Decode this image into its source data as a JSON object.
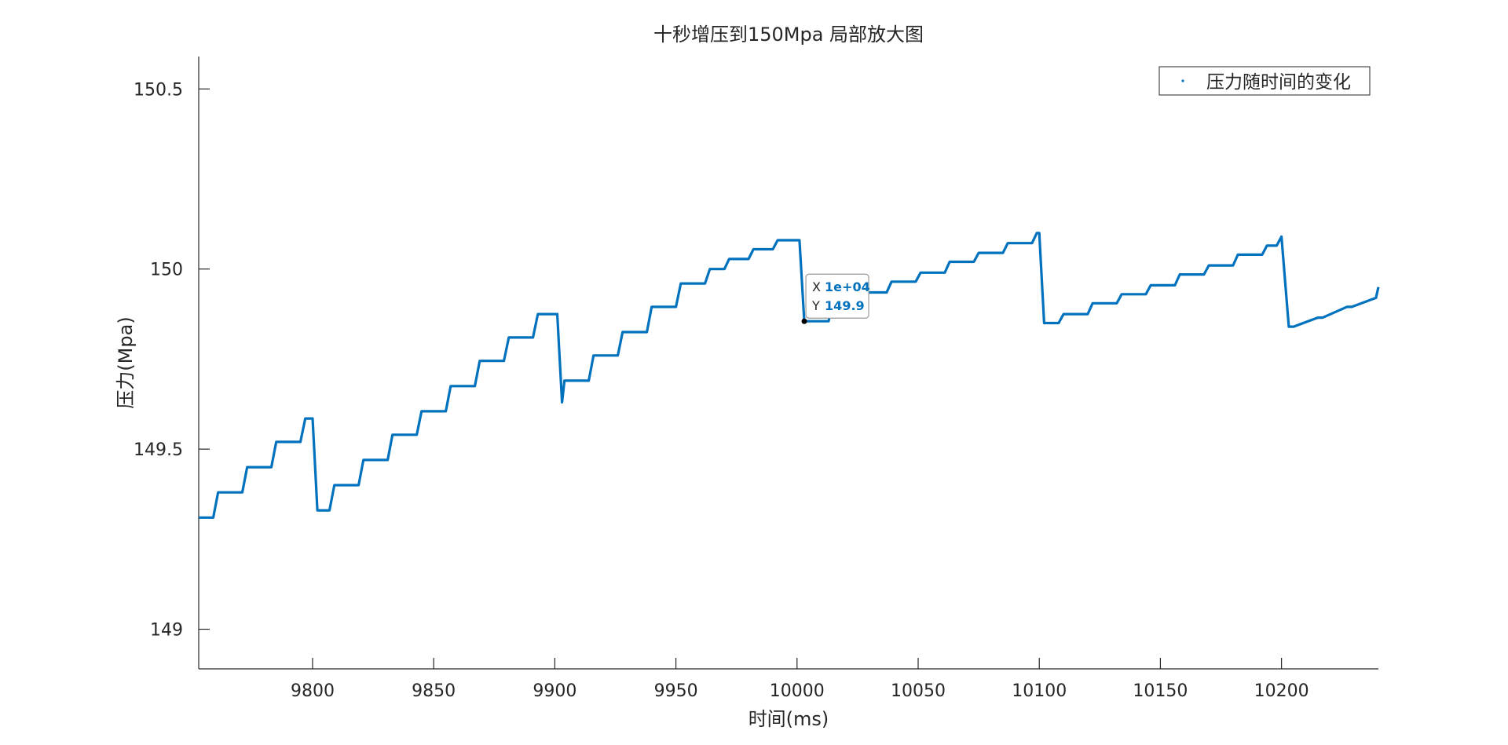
{
  "chart_data": {
    "type": "line",
    "title": "十秒增压到150Mpa 局部放大图",
    "xlabel": "时间(ms)",
    "ylabel": "压力(Mpa)",
    "xlim": [
      9753,
      10240
    ],
    "ylim": [
      148.89,
      150.59
    ],
    "x_ticks": [
      9800,
      9850,
      9900,
      9950,
      10000,
      10050,
      10100,
      10150,
      10200
    ],
    "y_ticks": [
      149,
      149.5,
      150,
      150.5
    ],
    "x_tick_labels": [
      "9800",
      "9850",
      "9900",
      "9950",
      "10000",
      "10050",
      "10100",
      "10150",
      "10200"
    ],
    "y_tick_labels": [
      "149",
      "149.5",
      "150",
      "150.5"
    ],
    "grid": false,
    "legend": {
      "position": "top-right",
      "entries": [
        "压力随时间的变化"
      ]
    },
    "series": [
      {
        "name": "压力随时间的变化",
        "color": "#0072BD",
        "x": [
          9753,
          9759,
          9761,
          9771,
          9773,
          9783,
          9785,
          9795,
          9797,
          9800,
          9802,
          9807,
          9809,
          9819,
          9821,
          9831,
          9833,
          9843,
          9845,
          9855,
          9857,
          9867,
          9869,
          9879,
          9881,
          9891,
          9893,
          9901,
          9903,
          9904,
          9914,
          9916,
          9926,
          9928,
          9938,
          9940,
          9950,
          9952,
          9962,
          9964,
          9970,
          9972,
          9980,
          9982,
          9990,
          9992,
          10001,
          10003,
          10013,
          10015,
          10025,
          10027,
          10037,
          10039,
          10049,
          10051,
          10061,
          10063,
          10073,
          10075,
          10085,
          10087,
          10097,
          10099,
          10100,
          10102,
          10108,
          10110,
          10120,
          10122,
          10132,
          10134,
          10144,
          10146,
          10156,
          10158,
          10168,
          10170,
          10180,
          10182,
          10192,
          10194,
          10198,
          10200,
          10203,
          10205,
          10215,
          10217,
          10227,
          10229,
          10239,
          10240
        ],
        "y": [
          149.31,
          149.31,
          149.38,
          149.38,
          149.45,
          149.45,
          149.52,
          149.52,
          149.585,
          149.585,
          149.33,
          149.33,
          149.4,
          149.4,
          149.47,
          149.47,
          149.54,
          149.54,
          149.605,
          149.605,
          149.675,
          149.675,
          149.745,
          149.745,
          149.81,
          149.81,
          149.875,
          149.875,
          149.63,
          149.69,
          149.69,
          149.76,
          149.76,
          149.825,
          149.825,
          149.895,
          149.895,
          149.96,
          149.96,
          150.0,
          150.0,
          150.028,
          150.028,
          150.055,
          150.055,
          150.08,
          150.08,
          149.855,
          149.855,
          149.91,
          149.91,
          149.935,
          149.935,
          149.965,
          149.965,
          149.99,
          149.99,
          150.02,
          150.02,
          150.045,
          150.045,
          150.072,
          150.072,
          150.1,
          150.1,
          149.85,
          149.85,
          149.875,
          149.875,
          149.905,
          149.905,
          149.93,
          149.93,
          149.955,
          149.955,
          149.985,
          149.985,
          150.01,
          150.01,
          150.04,
          150.04,
          150.065,
          150.065,
          150.09,
          149.84,
          149.84,
          149.865,
          149.865,
          149.895,
          149.895,
          149.92,
          149.95
        ]
      }
    ],
    "datatip": {
      "x_label": "X",
      "x_value": "1e+04",
      "y_label": "Y",
      "y_value": "149.9",
      "x": 10003,
      "y": 149.855
    }
  }
}
